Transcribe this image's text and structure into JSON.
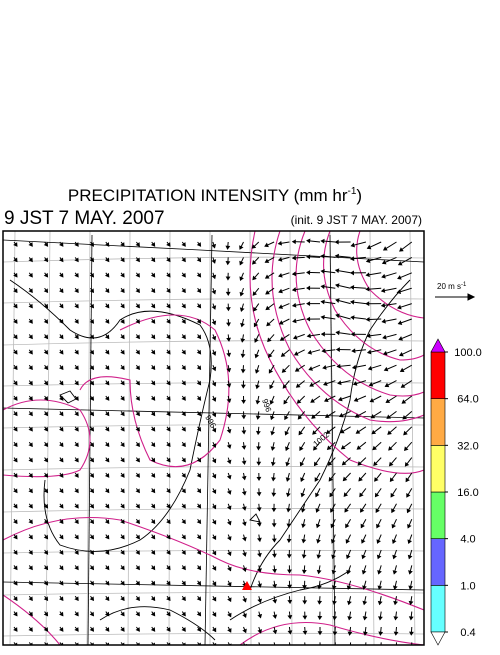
{
  "header": {
    "title": "PRECIPITATION INTENSITY (mm hr",
    "title_sup": "-1",
    "title_end": ")",
    "valid_time": "9 JST 7 MAY. 2007",
    "init_time": "(init. 9 JST 7 MAY. 2007)"
  },
  "wind_scale": {
    "label": "20 m s",
    "label_sup": "-1"
  },
  "contour_labels": [
    "996",
    "996",
    "1002"
  ],
  "colorbar": {
    "ticks": [
      {
        "value": 0.4,
        "label": "0.4"
      },
      {
        "value": 1,
        "label": "1.0"
      },
      {
        "value": 4,
        "label": "4.0"
      },
      {
        "value": 16,
        "label": "16.0"
      },
      {
        "value": 32,
        "label": "32.0"
      },
      {
        "value": 64,
        "label": "64.0"
      },
      {
        "value": 100,
        "label": "100.0"
      }
    ],
    "colors": [
      "#66ffff",
      "#6666ff",
      "#66ff66",
      "#ffff66",
      "#ffaa44",
      "#ff0000"
    ],
    "over_color": "#cc00ff",
    "under_color": "#ffffff"
  }
}
